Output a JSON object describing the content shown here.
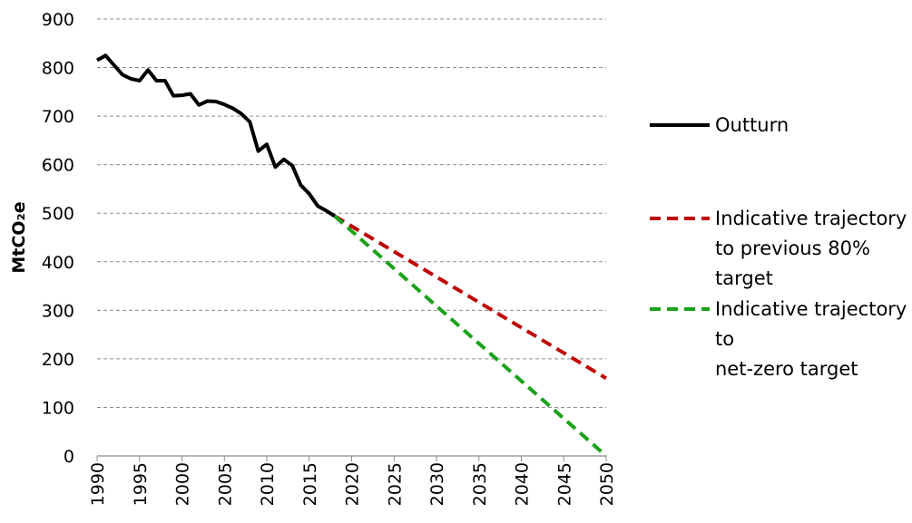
{
  "chart_data": {
    "type": "line",
    "ylabel": "MtCO₂e",
    "xlim": [
      1990,
      2050
    ],
    "ylim": [
      0,
      900
    ],
    "x_ticks": [
      1990,
      1995,
      2000,
      2005,
      2010,
      2015,
      2020,
      2025,
      2030,
      2035,
      2040,
      2045,
      2050
    ],
    "y_ticks": [
      0,
      100,
      200,
      300,
      400,
      500,
      600,
      700,
      800,
      900
    ],
    "grid": "horizontal dashed",
    "legend": "right",
    "series": [
      {
        "name": "Outturn",
        "color": "#000000",
        "style": "solid",
        "points": [
          [
            1990,
            815
          ],
          [
            1991,
            825
          ],
          [
            1992,
            805
          ],
          [
            1993,
            785
          ],
          [
            1994,
            777
          ],
          [
            1995,
            773
          ],
          [
            1996,
            795
          ],
          [
            1997,
            773
          ],
          [
            1998,
            773
          ],
          [
            1999,
            742
          ],
          [
            2000,
            743
          ],
          [
            2001,
            746
          ],
          [
            2002,
            723
          ],
          [
            2003,
            731
          ],
          [
            2004,
            730
          ],
          [
            2005,
            724
          ],
          [
            2006,
            716
          ],
          [
            2007,
            705
          ],
          [
            2008,
            688
          ],
          [
            2009,
            628
          ],
          [
            2010,
            642
          ],
          [
            2011,
            595
          ],
          [
            2012,
            611
          ],
          [
            2013,
            598
          ],
          [
            2014,
            558
          ],
          [
            2015,
            540
          ],
          [
            2016,
            515
          ],
          [
            2017,
            505
          ],
          [
            2018,
            494
          ]
        ]
      },
      {
        "name": "Indicative trajectory to previous 80% target",
        "legend_lines": [
          "Indicative trajectory",
          "to previous 80%",
          "target"
        ],
        "color": "#c00000",
        "style": "dashed",
        "points": [
          [
            2018,
            494
          ],
          [
            2050,
            160
          ]
        ]
      },
      {
        "name": "Indicative trajectory to net-zero target",
        "legend_lines": [
          "Indicative trajectory",
          "to",
          "net-zero target"
        ],
        "color": "#1aa21a",
        "style": "dashed",
        "points": [
          [
            2018,
            494
          ],
          [
            2050,
            0
          ]
        ]
      }
    ]
  }
}
